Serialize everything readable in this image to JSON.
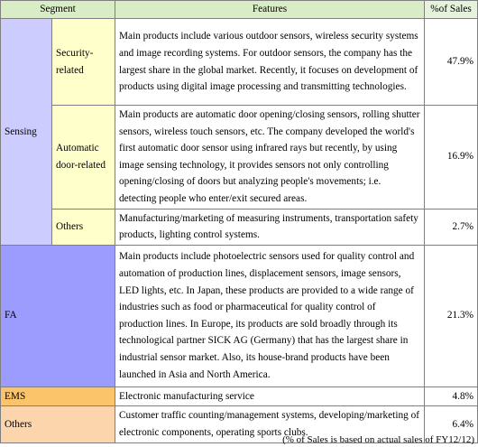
{
  "table": {
    "header": [
      "Segment",
      "Features",
      "%of Sales"
    ],
    "rows": [
      {
        "segment": "Sensing",
        "subsegment": "Security-related",
        "features": "Main products include various outdoor sensors, wireless security systems and image recording systems. For outdoor sensors, the company has the largest share in the global market. Recently, it focuses on development of products using digital image processing and transmitting technologies.",
        "sales": "47.9%"
      },
      {
        "subsegment": "Automatic door-related",
        "features": "Main products are automatic door opening/closing sensors, rolling shutter sensors, wireless touch sensors, etc. The company developed the world's first automatic door sensor using infrared rays but recently, by using image sensing technology, it provides sensors not only controlling opening/closing of doors but analyzing people's movements; i.e. detecting people who enter/exit secured areas.",
        "sales": "16.9%"
      },
      {
        "subsegment": "Others",
        "features": "Manufacturing/marketing of measuring instruments, transportation safety products, lighting control systems.",
        "sales": "2.7%"
      },
      {
        "segment": "FA",
        "features": "Main products include photoelectric sensors used for quality control and automation of production lines, displacement sensors, image sensors, LED lights, etc. In Japan, these products are provided to a wide range of industries such as food or pharmaceutical for quality control of production lines. In Europe, its products are sold broadly through its technological partner SICK AG (Germany) that has the largest share in industrial sensor market. Also, its house-brand products have been launched in Asia and North America.",
        "sales": "21.3%"
      },
      {
        "segment": "EMS",
        "features": "Electronic manufacturing service",
        "sales": "4.8%"
      },
      {
        "segment": "Others",
        "features": "Customer traffic counting/management systems, developing/marketing of electronic components, operating sports clubs.",
        "sales": "6.4%"
      }
    ],
    "footnote": "(% of Sales is based on actual sales of FY12/12)"
  }
}
